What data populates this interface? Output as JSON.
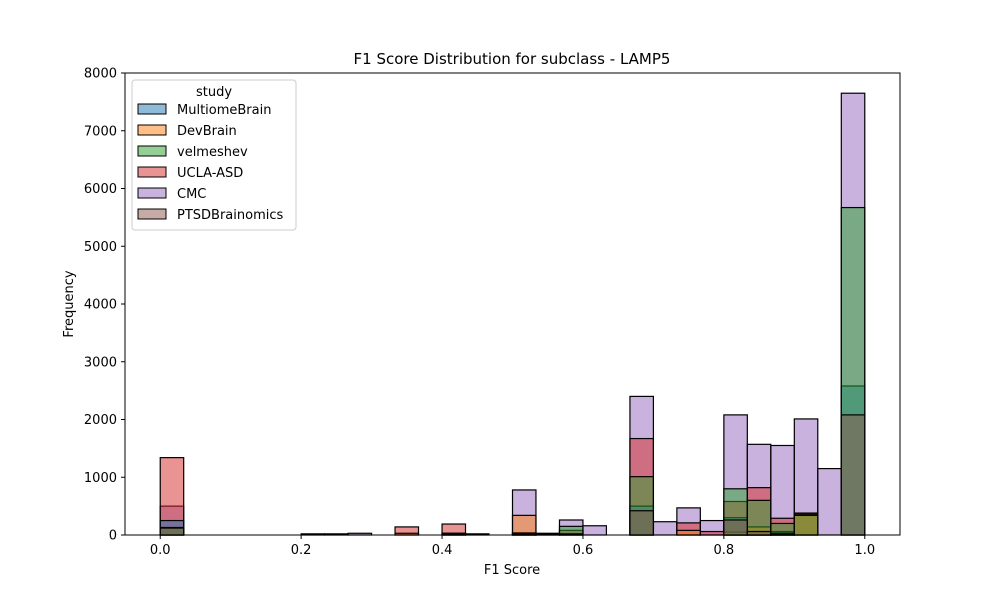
{
  "chart_data": {
    "type": "histogram",
    "title": "F1 Score Distribution for subclass - LAMP5",
    "xlabel": "F1 Score",
    "ylabel": "Frequency",
    "xlim": [
      -0.05,
      1.05
    ],
    "ylim": [
      0,
      8000
    ],
    "bin_width": 0.0333,
    "grid": false,
    "legend": {
      "title": "study",
      "placement": "top-left"
    },
    "x_ticks": [
      "0.0",
      "0.2",
      "0.4",
      "0.6",
      "0.8",
      "1.0"
    ],
    "y_ticks": [
      "0",
      "1000",
      "2000",
      "3000",
      "4000",
      "5000",
      "6000",
      "7000",
      "8000"
    ],
    "bin_starts": [
      0.0,
      0.0333,
      0.0667,
      0.1,
      0.1333,
      0.1667,
      0.2,
      0.2333,
      0.2667,
      0.3,
      0.3333,
      0.3667,
      0.4,
      0.4333,
      0.4667,
      0.5,
      0.5333,
      0.5667,
      0.6,
      0.6333,
      0.6667,
      0.7,
      0.7333,
      0.7667,
      0.8,
      0.8333,
      0.8667,
      0.9,
      0.9333,
      0.9667
    ],
    "series": [
      {
        "name": "MultiomeBrain",
        "color": "#1f77b4",
        "values": [
          250,
          0,
          0,
          0,
          0,
          0,
          0,
          0,
          0,
          0,
          0,
          0,
          30,
          0,
          0,
          0,
          0,
          0,
          0,
          0,
          500,
          0,
          0,
          0,
          300,
          60,
          60,
          0,
          0,
          2580
        ]
      },
      {
        "name": "DevBrain",
        "color": "#ff7f0e",
        "values": [
          0,
          0,
          0,
          0,
          0,
          0,
          0,
          0,
          0,
          0,
          30,
          0,
          0,
          0,
          0,
          340,
          20,
          0,
          0,
          0,
          0,
          0,
          80,
          0,
          50,
          140,
          40,
          360,
          0,
          0
        ]
      },
      {
        "name": "velmeshev",
        "color": "#2ca02c",
        "values": [
          130,
          0,
          0,
          0,
          0,
          0,
          0,
          0,
          0,
          0,
          0,
          0,
          30,
          0,
          0,
          30,
          0,
          150,
          0,
          0,
          1010,
          0,
          0,
          0,
          800,
          600,
          200,
          340,
          0,
          5670
        ]
      },
      {
        "name": "UCLA-ASD",
        "color": "#d62728",
        "values": [
          1340,
          0,
          0,
          0,
          0,
          0,
          0,
          0,
          0,
          0,
          140,
          0,
          190,
          0,
          0,
          40,
          30,
          80,
          0,
          0,
          1670,
          0,
          210,
          60,
          580,
          820,
          290,
          380,
          0,
          0
        ]
      },
      {
        "name": "CMC",
        "color": "#9467bd",
        "values": [
          500,
          0,
          0,
          0,
          0,
          0,
          20,
          20,
          30,
          0,
          0,
          0,
          0,
          20,
          0,
          780,
          0,
          260,
          160,
          0,
          2400,
          230,
          470,
          250,
          2080,
          1570,
          1550,
          2010,
          1150,
          7650
        ]
      },
      {
        "name": "PTSDBrainomics",
        "color": "#8c564b",
        "values": [
          120,
          0,
          0,
          0,
          0,
          0,
          0,
          0,
          0,
          0,
          0,
          0,
          20,
          0,
          0,
          20,
          0,
          20,
          0,
          0,
          420,
          0,
          0,
          0,
          260,
          60,
          20,
          0,
          0,
          2080
        ]
      }
    ],
    "draw_order": [
      "CMC",
      "UCLA-ASD",
      "MultiomeBrain",
      "DevBrain",
      "velmeshev",
      "PTSDBrainomics"
    ]
  }
}
